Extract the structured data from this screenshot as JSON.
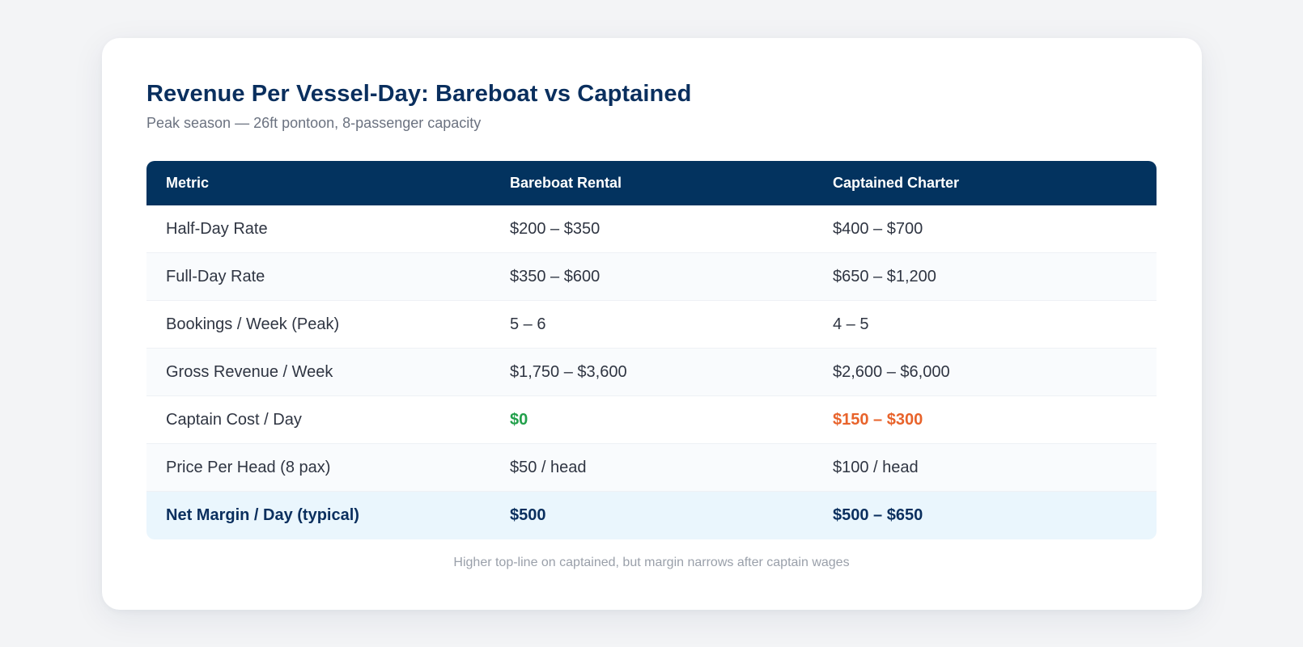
{
  "title": "Revenue Per Vessel-Day: Bareboat vs Captained",
  "subtitle": "Peak season — 26ft pontoon, 8-passenger capacity",
  "table": {
    "headers": [
      "Metric",
      "Bareboat Rental",
      "Captained Charter"
    ],
    "rows": [
      [
        "Half-Day Rate",
        "$200 – $350",
        "$400 – $700"
      ],
      [
        "Full-Day Rate",
        "$350 – $600",
        "$650 – $1,200"
      ],
      [
        "Bookings / Week (Peak)",
        "5 – 6",
        "4 – 5"
      ],
      [
        "Gross Revenue / Week",
        "$1,750 – $3,600",
        "$2,600 – $6,000"
      ],
      [
        "Captain Cost / Day",
        "$0",
        "$150 – $300"
      ],
      [
        "Price Per Head (8 pax)",
        "$50 / head",
        "$100 / head"
      ],
      [
        "Net Margin / Day (typical)",
        "$500",
        "$500 – $650"
      ]
    ]
  },
  "footnote": "Higher top-line on captained, but margin narrows after captain wages",
  "colors": {
    "header_bg": "#03335f",
    "title": "#0a2f5e",
    "positive": "#22a04b",
    "cost": "#e8632b",
    "highlight_row": "#eaf6fd"
  }
}
